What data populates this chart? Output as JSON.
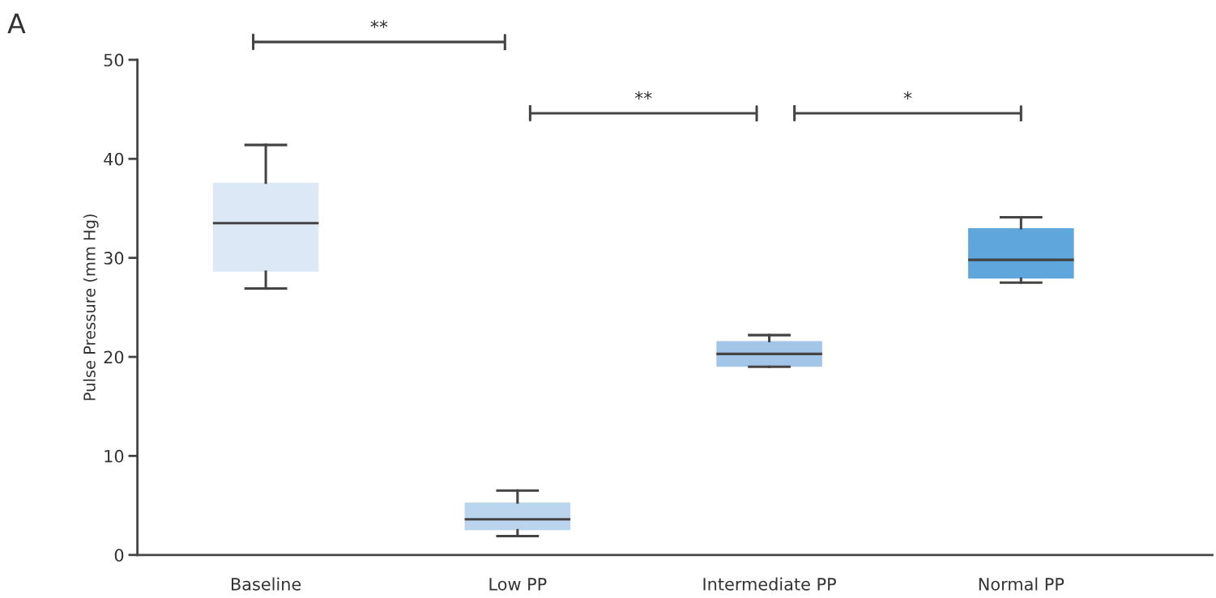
{
  "chart_data": {
    "type": "box",
    "ylabel": "Pulse Pressure (mm Hg)",
    "categories": [
      "Baseline",
      "Low PP",
      "Intermediate PP",
      "Normal PP"
    ],
    "colors": [
      "#dce8f6",
      "#bcd5ee",
      "#a3c6e8",
      "#5ea6dc"
    ],
    "boxes": [
      {
        "low": 26.9,
        "q1": 28.6,
        "median": 33.5,
        "q3": 37.6,
        "high": 41.4
      },
      {
        "low": 1.9,
        "q1": 2.5,
        "median": 3.6,
        "q3": 5.3,
        "high": 6.5
      },
      {
        "low": 19.0,
        "q1": 19.0,
        "median": 20.3,
        "q3": 21.6,
        "high": 22.2
      },
      {
        "low": 27.5,
        "q1": 27.9,
        "median": 29.8,
        "q3": 33.0,
        "high": 34.1
      }
    ],
    "ylim": [
      0,
      50
    ],
    "yticks": [
      0,
      10,
      20,
      30,
      40,
      50
    ],
    "grid": false,
    "annotations": [
      "A",
      "**",
      "**",
      "*"
    ]
  }
}
